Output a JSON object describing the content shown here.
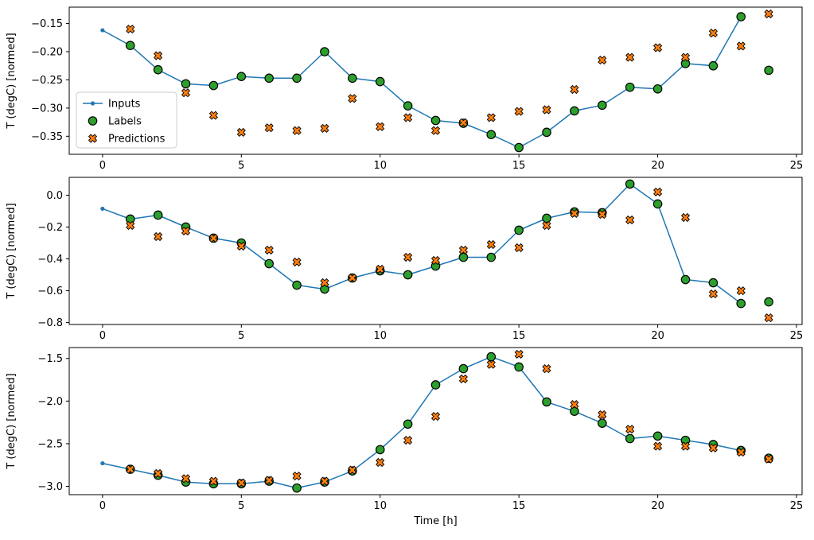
{
  "figure": {
    "xlabel": "Time [h]",
    "ylabel": "T (degC) [normed]",
    "legend": {
      "location": "lower-left-inset-top-subplot",
      "entries": [
        "Inputs",
        "Labels",
        "Predictions"
      ]
    },
    "colors": {
      "inputs_line": "#1f77b4",
      "labels_fill": "#2ca02c",
      "predictions_fill": "#ff7f0e",
      "marker_edge": "#000000",
      "axis": "#000000",
      "legend_border": "#cccccc",
      "background": "#ffffff"
    }
  },
  "chart_data": [
    {
      "type": "line",
      "title": "",
      "xlabel": "",
      "ylabel": "T (degC) [normed]",
      "xlim": [
        -1.2,
        25.2
      ],
      "ylim": [
        -0.382,
        -0.121
      ],
      "xticks": [
        0,
        5,
        10,
        15,
        20,
        25
      ],
      "xtick_labels": [
        "0",
        "5",
        "10",
        "15",
        "20",
        "25"
      ],
      "yticks": [
        -0.15,
        -0.2,
        -0.25,
        -0.3,
        -0.35
      ],
      "ytick_labels": [
        "−0.15",
        "−0.20",
        "−0.25",
        "−0.30",
        "−0.35"
      ],
      "grid": false,
      "series": [
        {
          "name": "Inputs",
          "kind": "line",
          "x": [
            0,
            1,
            2,
            3,
            4,
            5,
            6,
            7,
            8,
            9,
            10,
            11,
            12,
            13,
            14,
            15,
            16,
            17,
            18,
            19,
            20,
            21,
            22,
            23
          ],
          "y": [
            -0.162,
            -0.189,
            -0.232,
            -0.257,
            -0.26,
            -0.244,
            -0.247,
            -0.247,
            -0.2,
            -0.247,
            -0.253,
            -0.296,
            -0.322,
            -0.327,
            -0.347,
            -0.37,
            -0.343,
            -0.305,
            -0.295,
            -0.263,
            -0.266,
            -0.221,
            -0.225,
            -0.138
          ]
        },
        {
          "name": "Labels",
          "kind": "circles",
          "x": [
            1,
            2,
            3,
            4,
            5,
            6,
            7,
            8,
            9,
            10,
            11,
            12,
            13,
            14,
            15,
            16,
            17,
            18,
            19,
            20,
            21,
            22,
            23,
            24
          ],
          "y": [
            -0.189,
            -0.232,
            -0.257,
            -0.26,
            -0.244,
            -0.247,
            -0.247,
            -0.2,
            -0.247,
            -0.253,
            -0.296,
            -0.322,
            -0.327,
            -0.347,
            -0.37,
            -0.343,
            -0.305,
            -0.295,
            -0.263,
            -0.266,
            -0.221,
            -0.225,
            -0.138,
            -0.233
          ]
        },
        {
          "name": "Predictions",
          "kind": "x-markers",
          "x": [
            1,
            2,
            3,
            4,
            5,
            6,
            7,
            8,
            9,
            10,
            11,
            12,
            13,
            14,
            15,
            16,
            17,
            18,
            19,
            20,
            21,
            22,
            23,
            24
          ],
          "y": [
            -0.16,
            -0.207,
            -0.273,
            -0.313,
            -0.343,
            -0.335,
            -0.34,
            -0.336,
            -0.283,
            -0.333,
            -0.317,
            -0.34,
            -0.326,
            -0.317,
            -0.306,
            -0.303,
            -0.267,
            -0.215,
            -0.21,
            -0.193,
            -0.21,
            -0.167,
            -0.19,
            -0.133
          ]
        }
      ]
    },
    {
      "type": "line",
      "title": "",
      "xlabel": "",
      "ylabel": "T (degC) [normed]",
      "xlim": [
        -1.2,
        25.2
      ],
      "ylim": [
        -0.812,
        0.112
      ],
      "xticks": [
        0,
        5,
        10,
        15,
        20,
        25
      ],
      "xtick_labels": [
        "0",
        "5",
        "10",
        "15",
        "20",
        "25"
      ],
      "yticks": [
        0.0,
        -0.2,
        -0.4,
        -0.6,
        -0.8
      ],
      "ytick_labels": [
        "0.0",
        "−0.2",
        "−0.4",
        "−0.6",
        "−0.8"
      ],
      "grid": false,
      "series": [
        {
          "name": "Inputs",
          "kind": "line",
          "x": [
            0,
            1,
            2,
            3,
            4,
            5,
            6,
            7,
            8,
            9,
            10,
            11,
            12,
            13,
            14,
            15,
            16,
            17,
            18,
            19,
            20,
            21,
            22,
            23
          ],
          "y": [
            -0.085,
            -0.15,
            -0.125,
            -0.2,
            -0.27,
            -0.3,
            -0.43,
            -0.565,
            -0.59,
            -0.52,
            -0.475,
            -0.5,
            -0.445,
            -0.39,
            -0.39,
            -0.22,
            -0.145,
            -0.105,
            -0.11,
            0.07,
            -0.055,
            -0.53,
            -0.55,
            -0.68
          ]
        },
        {
          "name": "Labels",
          "kind": "circles",
          "x": [
            1,
            2,
            3,
            4,
            5,
            6,
            7,
            8,
            9,
            10,
            11,
            12,
            13,
            14,
            15,
            16,
            17,
            18,
            19,
            20,
            21,
            22,
            23,
            24
          ],
          "y": [
            -0.15,
            -0.125,
            -0.2,
            -0.27,
            -0.3,
            -0.43,
            -0.565,
            -0.59,
            -0.52,
            -0.475,
            -0.5,
            -0.445,
            -0.39,
            -0.39,
            -0.22,
            -0.145,
            -0.105,
            -0.11,
            0.07,
            -0.055,
            -0.53,
            -0.55,
            -0.68,
            -0.67
          ]
        },
        {
          "name": "Predictions",
          "kind": "x-markers",
          "x": [
            1,
            2,
            3,
            4,
            5,
            6,
            7,
            8,
            9,
            10,
            11,
            12,
            13,
            14,
            15,
            16,
            17,
            18,
            19,
            20,
            21,
            22,
            23,
            24
          ],
          "y": [
            -0.19,
            -0.26,
            -0.225,
            -0.27,
            -0.32,
            -0.345,
            -0.42,
            -0.55,
            -0.52,
            -0.465,
            -0.39,
            -0.41,
            -0.345,
            -0.31,
            -0.33,
            -0.19,
            -0.115,
            -0.12,
            -0.155,
            0.02,
            -0.14,
            -0.62,
            -0.6,
            -0.77
          ]
        }
      ]
    },
    {
      "type": "line",
      "title": "",
      "xlabel": "Time [h]",
      "ylabel": "T (degC) [normed]",
      "xlim": [
        -1.2,
        25.2
      ],
      "ylim": [
        -3.098,
        -1.372
      ],
      "xticks": [
        0,
        5,
        10,
        15,
        20,
        25
      ],
      "xtick_labels": [
        "0",
        "5",
        "10",
        "15",
        "20",
        "25"
      ],
      "yticks": [
        -1.5,
        -2.0,
        -2.5,
        -3.0
      ],
      "ytick_labels": [
        "−1.5",
        "−2.0",
        "−2.5",
        "−3.0"
      ],
      "grid": false,
      "series": [
        {
          "name": "Inputs",
          "kind": "line",
          "x": [
            0,
            1,
            2,
            3,
            4,
            5,
            6,
            7,
            8,
            9,
            10,
            11,
            12,
            13,
            14,
            15,
            16,
            17,
            18,
            19,
            20,
            21,
            22,
            23
          ],
          "y": [
            -2.73,
            -2.8,
            -2.87,
            -2.95,
            -2.97,
            -2.97,
            -2.94,
            -3.02,
            -2.95,
            -2.82,
            -2.57,
            -2.27,
            -1.81,
            -1.62,
            -1.48,
            -1.6,
            -2.01,
            -2.12,
            -2.26,
            -2.44,
            -2.41,
            -2.46,
            -2.51,
            -2.58
          ]
        },
        {
          "name": "Labels",
          "kind": "circles",
          "x": [
            1,
            2,
            3,
            4,
            5,
            6,
            7,
            8,
            9,
            10,
            11,
            12,
            13,
            14,
            15,
            16,
            17,
            18,
            19,
            20,
            21,
            22,
            23,
            24
          ],
          "y": [
            -2.8,
            -2.87,
            -2.95,
            -2.97,
            -2.97,
            -2.94,
            -3.02,
            -2.95,
            -2.82,
            -2.57,
            -2.27,
            -1.81,
            -1.62,
            -1.48,
            -1.6,
            -2.01,
            -2.12,
            -2.26,
            -2.44,
            -2.41,
            -2.46,
            -2.51,
            -2.58,
            -2.67
          ]
        },
        {
          "name": "Predictions",
          "kind": "x-markers",
          "x": [
            1,
            2,
            3,
            4,
            5,
            6,
            7,
            8,
            9,
            10,
            11,
            12,
            13,
            14,
            15,
            16,
            17,
            18,
            19,
            20,
            21,
            22,
            23,
            24
          ],
          "y": [
            -2.8,
            -2.85,
            -2.91,
            -2.94,
            -2.96,
            -2.93,
            -2.88,
            -2.94,
            -2.81,
            -2.72,
            -2.46,
            -2.18,
            -1.74,
            -1.57,
            -1.45,
            -1.62,
            -2.04,
            -2.16,
            -2.33,
            -2.53,
            -2.53,
            -2.55,
            -2.6,
            -2.68
          ]
        }
      ]
    }
  ]
}
